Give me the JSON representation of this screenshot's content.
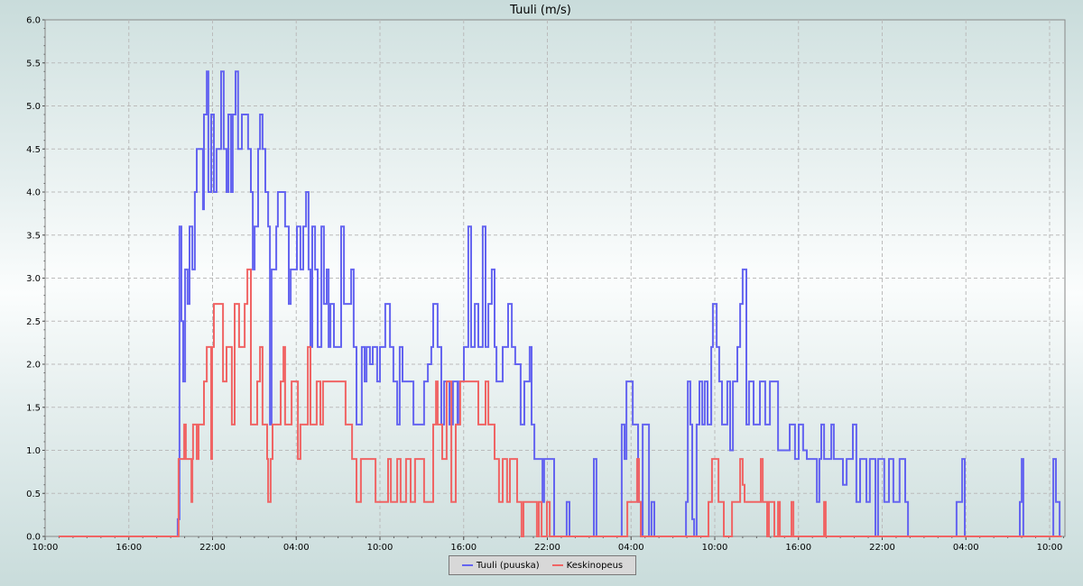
{
  "chart_data": {
    "type": "line",
    "step": true,
    "title": "Tuuli (m/s)",
    "xlabel": "",
    "ylabel": "",
    "xlim": [
      "10:00",
      "11:06"
    ],
    "ylim": [
      0,
      6.0
    ],
    "grid": true,
    "legend_placement": "bottom-center",
    "x_tick_labels": [
      "10:00",
      "16:00",
      "22:00",
      "04:00",
      "10:00",
      "16:00",
      "22:00",
      "04:00",
      "10:00",
      "16:00",
      "22:00",
      "04:00",
      "10:00"
    ],
    "y_tick_labels": [
      "0.0",
      "0.5",
      "1.0",
      "1.5",
      "2.0",
      "2.5",
      "3.0",
      "3.5",
      "4.0",
      "4.5",
      "5.0",
      "5.5",
      "6.0"
    ],
    "series": [
      {
        "name": "Tuuli (puuska)",
        "color": "#6464f0",
        "points": [
          [
            "10:58",
            0
          ],
          [
            "19:30",
            0.2
          ],
          [
            "19:38",
            3.6
          ],
          [
            "19:46",
            2.5
          ],
          [
            "19:54",
            1.8
          ],
          [
            "20:02",
            3.1
          ],
          [
            "20:13",
            2.7
          ],
          [
            "20:21",
            3.6
          ],
          [
            "20:33",
            3.1
          ],
          [
            "20:44",
            4.0
          ],
          [
            "20:52",
            4.5
          ],
          [
            "21:19",
            3.8
          ],
          [
            "21:23",
            4.9
          ],
          [
            "21:35",
            5.4
          ],
          [
            "21:42",
            4.0
          ],
          [
            "21:54",
            4.9
          ],
          [
            "22:06",
            4.0
          ],
          [
            "22:17",
            4.5
          ],
          [
            "22:37",
            5.4
          ],
          [
            "22:48",
            4.5
          ],
          [
            "23:00",
            4.0
          ],
          [
            "23:08",
            4.9
          ],
          [
            "23:19",
            4.0
          ],
          [
            "23:27",
            4.9
          ],
          [
            "23:39",
            5.4
          ],
          [
            "23:50",
            4.5
          ],
          [
            "00:06",
            4.9
          ],
          [
            "00:33",
            4.5
          ],
          [
            "00:45",
            4.0
          ],
          [
            "00:53",
            3.1
          ],
          [
            "01:01",
            3.6
          ],
          [
            "01:16",
            4.5
          ],
          [
            "01:24",
            4.9
          ],
          [
            "01:35",
            4.5
          ],
          [
            "01:47",
            4.0
          ],
          [
            "01:59",
            3.6
          ],
          [
            "02:07",
            1.3
          ],
          [
            "02:14",
            3.1
          ],
          [
            "02:34",
            3.6
          ],
          [
            "02:41",
            4.0
          ],
          [
            "03:12",
            3.6
          ],
          [
            "03:28",
            2.7
          ],
          [
            "03:36",
            3.1
          ],
          [
            "04:03",
            3.6
          ],
          [
            "04:18",
            3.1
          ],
          [
            "04:30",
            3.6
          ],
          [
            "04:42",
            4.0
          ],
          [
            "04:53",
            3.1
          ],
          [
            "05:01",
            2.2
          ],
          [
            "05:09",
            3.6
          ],
          [
            "05:21",
            3.1
          ],
          [
            "05:32",
            2.2
          ],
          [
            "05:48",
            3.6
          ],
          [
            "05:59",
            2.7
          ],
          [
            "06:11",
            3.1
          ],
          [
            "06:19",
            2.2
          ],
          [
            "06:27",
            2.7
          ],
          [
            "06:42",
            2.2
          ],
          [
            "07:13",
            3.6
          ],
          [
            "07:25",
            2.7
          ],
          [
            "07:56",
            3.1
          ],
          [
            "08:07",
            2.2
          ],
          [
            "08:19",
            1.3
          ],
          [
            "08:42",
            2.2
          ],
          [
            "08:54",
            1.8
          ],
          [
            "09:02",
            2.2
          ],
          [
            "09:17",
            2.0
          ],
          [
            "09:29",
            2.2
          ],
          [
            "09:48",
            1.8
          ],
          [
            "10:00",
            2.2
          ],
          [
            "10:23",
            2.7
          ],
          [
            "10:43",
            2.2
          ],
          [
            "10:58",
            1.8
          ],
          [
            "11:14",
            1.3
          ],
          [
            "11:25",
            2.2
          ],
          [
            "11:37",
            1.8
          ],
          [
            "12:24",
            1.3
          ],
          [
            "13:10",
            1.8
          ],
          [
            "13:26",
            2.0
          ],
          [
            "13:41",
            2.2
          ],
          [
            "13:49",
            2.7
          ],
          [
            "14:08",
            2.2
          ],
          [
            "14:24",
            1.3
          ],
          [
            "14:36",
            1.8
          ],
          [
            "14:59",
            1.3
          ],
          [
            "15:14",
            1.8
          ],
          [
            "15:34",
            1.3
          ],
          [
            "15:42",
            1.8
          ],
          [
            "16:01",
            2.2
          ],
          [
            "16:20",
            3.6
          ],
          [
            "16:32",
            2.2
          ],
          [
            "16:48",
            2.7
          ],
          [
            "17:03",
            2.2
          ],
          [
            "17:22",
            3.6
          ],
          [
            "17:34",
            2.2
          ],
          [
            "17:46",
            2.7
          ],
          [
            "18:01",
            3.1
          ],
          [
            "18:13",
            2.2
          ],
          [
            "18:21",
            1.8
          ],
          [
            "18:48",
            2.2
          ],
          [
            "19:11",
            2.7
          ],
          [
            "19:27",
            2.2
          ],
          [
            "19:42",
            2.0
          ],
          [
            "20:05",
            1.3
          ],
          [
            "20:21",
            1.8
          ],
          [
            "20:44",
            2.2
          ],
          [
            "20:52",
            1.3
          ],
          [
            "21:04",
            0.9
          ],
          [
            "21:39",
            0.4
          ],
          [
            "21:46",
            0.9
          ],
          [
            "22:29",
            0
          ],
          [
            "23:23",
            0.4
          ],
          [
            "23:35",
            0
          ],
          [
            "01:20",
            0.9
          ],
          [
            "01:31",
            0
          ],
          [
            "03:20",
            1.3
          ],
          [
            "03:32",
            0.9
          ],
          [
            "03:40",
            1.8
          ],
          [
            "04:07",
            1.3
          ],
          [
            "04:30",
            0.4
          ],
          [
            "04:42",
            0
          ],
          [
            "04:50",
            1.3
          ],
          [
            "05:17",
            0
          ],
          [
            "05:28",
            0.4
          ],
          [
            "05:40",
            0
          ],
          [
            "07:56",
            0.4
          ],
          [
            "08:04",
            1.8
          ],
          [
            "08:15",
            1.3
          ],
          [
            "08:23",
            0.2
          ],
          [
            "08:31",
            0
          ],
          [
            "08:42",
            1.3
          ],
          [
            "08:54",
            1.8
          ],
          [
            "09:06",
            1.3
          ],
          [
            "09:17",
            1.8
          ],
          [
            "09:29",
            1.3
          ],
          [
            "09:45",
            2.2
          ],
          [
            "09:52",
            2.7
          ],
          [
            "10:08",
            2.2
          ],
          [
            "10:19",
            1.8
          ],
          [
            "10:31",
            1.3
          ],
          [
            "10:54",
            1.8
          ],
          [
            "11:06",
            1.0
          ],
          [
            "11:18",
            1.8
          ],
          [
            "11:37",
            2.2
          ],
          [
            "11:49",
            2.7
          ],
          [
            "12:00",
            3.1
          ],
          [
            "12:16",
            1.3
          ],
          [
            "12:27",
            1.8
          ],
          [
            "12:47",
            1.3
          ],
          [
            "13:14",
            1.8
          ],
          [
            "13:37",
            1.3
          ],
          [
            "13:57",
            1.8
          ],
          [
            "14:32",
            1.0
          ],
          [
            "15:22",
            1.3
          ],
          [
            "15:45",
            0.9
          ],
          [
            "16:01",
            1.3
          ],
          [
            "16:20",
            1.0
          ],
          [
            "16:36",
            0.9
          ],
          [
            "17:19",
            0.4
          ],
          [
            "17:30",
            0.9
          ],
          [
            "17:38",
            1.3
          ],
          [
            "17:50",
            0.9
          ],
          [
            "18:21",
            1.3
          ],
          [
            "18:32",
            0.9
          ],
          [
            "19:11",
            0.6
          ],
          [
            "19:27",
            0.9
          ],
          [
            "19:54",
            1.3
          ],
          [
            "20:09",
            0.4
          ],
          [
            "20:25",
            0.9
          ],
          [
            "20:52",
            0.4
          ],
          [
            "21:07",
            0.9
          ],
          [
            "21:31",
            0
          ],
          [
            "21:42",
            0.9
          ],
          [
            "22:09",
            0.4
          ],
          [
            "22:29",
            0.9
          ],
          [
            "22:48",
            0.4
          ],
          [
            "23:15",
            0.9
          ],
          [
            "23:39",
            0.4
          ],
          [
            "23:51",
            0
          ],
          [
            "03:20",
            0.4
          ],
          [
            "03:44",
            0.9
          ],
          [
            "03:55",
            0
          ],
          [
            "07:52",
            0.4
          ],
          [
            "08:00",
            0.9
          ],
          [
            "08:07",
            0
          ],
          [
            "10:16",
            0.9
          ],
          [
            "10:27",
            0.4
          ],
          [
            "10:43",
            0
          ]
        ]
      },
      {
        "name": "Keskinopeus",
        "color": "#f06464",
        "points": [
          [
            "10:58",
            0
          ],
          [
            "19:34",
            0.9
          ],
          [
            "19:58",
            1.3
          ],
          [
            "20:05",
            0.9
          ],
          [
            "20:29",
            0.4
          ],
          [
            "20:33",
            0.9
          ],
          [
            "20:36",
            1.3
          ],
          [
            "20:52",
            0.9
          ],
          [
            "21:00",
            1.3
          ],
          [
            "21:23",
            1.8
          ],
          [
            "21:35",
            2.2
          ],
          [
            "21:54",
            0.9
          ],
          [
            "21:58",
            2.2
          ],
          [
            "22:06",
            2.7
          ],
          [
            "22:45",
            1.8
          ],
          [
            "23:00",
            2.2
          ],
          [
            "23:23",
            1.3
          ],
          [
            "23:35",
            2.7
          ],
          [
            "23:54",
            2.2
          ],
          [
            "00:18",
            2.7
          ],
          [
            "00:30",
            3.1
          ],
          [
            "00:45",
            1.3
          ],
          [
            "01:12",
            1.8
          ],
          [
            "01:24",
            2.2
          ],
          [
            "01:35",
            1.3
          ],
          [
            "01:55",
            0.9
          ],
          [
            "01:59",
            0.4
          ],
          [
            "02:10",
            0.9
          ],
          [
            "02:18",
            1.3
          ],
          [
            "02:53",
            1.8
          ],
          [
            "03:05",
            2.2
          ],
          [
            "03:12",
            1.3
          ],
          [
            "03:40",
            1.8
          ],
          [
            "04:07",
            0.9
          ],
          [
            "04:18",
            1.3
          ],
          [
            "04:50",
            2.2
          ],
          [
            "05:01",
            1.3
          ],
          [
            "05:28",
            1.8
          ],
          [
            "05:44",
            1.3
          ],
          [
            "05:55",
            1.8
          ],
          [
            "07:32",
            1.3
          ],
          [
            "08:00",
            0.9
          ],
          [
            "08:19",
            0.4
          ],
          [
            "08:38",
            0.9
          ],
          [
            "09:41",
            0.4
          ],
          [
            "10:35",
            0.9
          ],
          [
            "10:47",
            0.4
          ],
          [
            "11:14",
            0.9
          ],
          [
            "11:29",
            0.4
          ],
          [
            "11:52",
            0.9
          ],
          [
            "12:12",
            0.4
          ],
          [
            "12:31",
            0.9
          ],
          [
            "13:10",
            0.4
          ],
          [
            "13:49",
            1.3
          ],
          [
            "14:01",
            1.8
          ],
          [
            "14:08",
            1.3
          ],
          [
            "14:28",
            0.9
          ],
          [
            "14:47",
            1.8
          ],
          [
            "15:07",
            0.4
          ],
          [
            "15:26",
            1.3
          ],
          [
            "15:45",
            1.8
          ],
          [
            "17:03",
            1.3
          ],
          [
            "17:34",
            1.8
          ],
          [
            "17:46",
            1.3
          ],
          [
            "18:13",
            0.9
          ],
          [
            "18:32",
            0.4
          ],
          [
            "18:48",
            0.9
          ],
          [
            "19:07",
            0.4
          ],
          [
            "19:19",
            0.9
          ],
          [
            "19:50",
            0.4
          ],
          [
            "20:09",
            0
          ],
          [
            "20:17",
            0.4
          ],
          [
            "21:15",
            0
          ],
          [
            "21:23",
            0.4
          ],
          [
            "21:35",
            0
          ],
          [
            "21:58",
            0.4
          ],
          [
            "22:10",
            0
          ],
          [
            "03:44",
            0.4
          ],
          [
            "04:26",
            0.9
          ],
          [
            "04:34",
            0.4
          ],
          [
            "04:42",
            0
          ],
          [
            "09:33",
            0.4
          ],
          [
            "09:48",
            0.9
          ],
          [
            "10:16",
            0.4
          ],
          [
            "10:39",
            0
          ],
          [
            "11:14",
            0.4
          ],
          [
            "11:49",
            0.9
          ],
          [
            "12:00",
            0.6
          ],
          [
            "12:08",
            0.4
          ],
          [
            "13:18",
            0.9
          ],
          [
            "13:26",
            0.4
          ],
          [
            "13:45",
            0
          ],
          [
            "13:53",
            0.4
          ],
          [
            "14:16",
            0
          ],
          [
            "14:32",
            0.4
          ],
          [
            "14:40",
            0
          ],
          [
            "15:30",
            0.4
          ],
          [
            "15:38",
            0
          ],
          [
            "17:50",
            0.4
          ],
          [
            "17:57",
            0
          ]
        ]
      }
    ]
  }
}
